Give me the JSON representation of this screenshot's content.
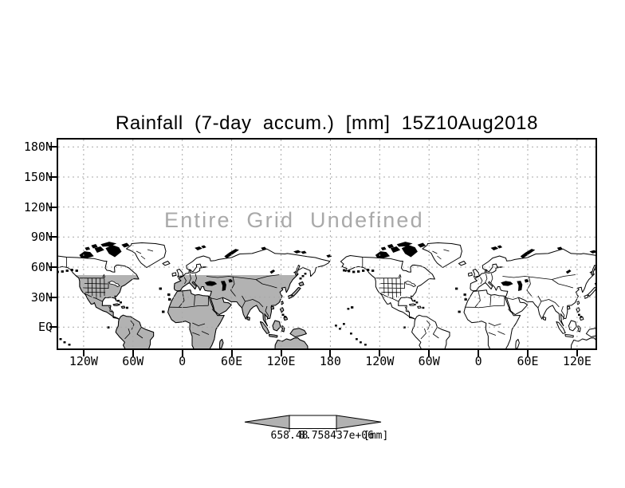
{
  "title": "Rainfall (7-day accum.) [mm] 15Z10Aug2018",
  "overlay_message": "Entire Grid Undefined",
  "y_axis": {
    "labels": [
      "180N",
      "150N",
      "120N",
      "90N",
      "60N",
      "30N",
      "EQ"
    ]
  },
  "x_axis": {
    "labels": [
      "120W",
      "60W",
      "0",
      "60E",
      "120E",
      "180",
      "120W",
      "60W",
      "0",
      "60E",
      "120E"
    ]
  },
  "colorbar": {
    "left_label": "658.48",
    "right_label": "8.758437e+06",
    "unit": "[mm]"
  },
  "colors": {
    "land_fill": "#b2b2b2",
    "arrow_fill": "#b2b2b2",
    "gridline": "#a8a8a8",
    "message_text": "#a9a9a9",
    "ink": "#000000"
  },
  "chart_data": {
    "type": "heatmap",
    "title": "Rainfall (7-day accum.) [mm] 15Z10Aug2018",
    "annotation": "Entire Grid Undefined",
    "xlabel": "",
    "ylabel": "",
    "x_tick_labels": [
      "120W",
      "60W",
      "0",
      "60E",
      "120E",
      "180",
      "120W",
      "60W",
      "0",
      "60E",
      "120E"
    ],
    "y_tick_labels": [
      "180N",
      "150N",
      "120N",
      "90N",
      "60N",
      "30N",
      "EQ"
    ],
    "grid": true,
    "series": [],
    "values": "undefined (no data plotted; basemap only, two longitude wraps of world coastlines)",
    "colorbar": {
      "boundaries": [
        "658.48",
        "8.758437e+06"
      ],
      "unit": "[mm]",
      "segments": [
        "gray-left-arrow",
        "white",
        "gray-right-arrow"
      ]
    }
  }
}
